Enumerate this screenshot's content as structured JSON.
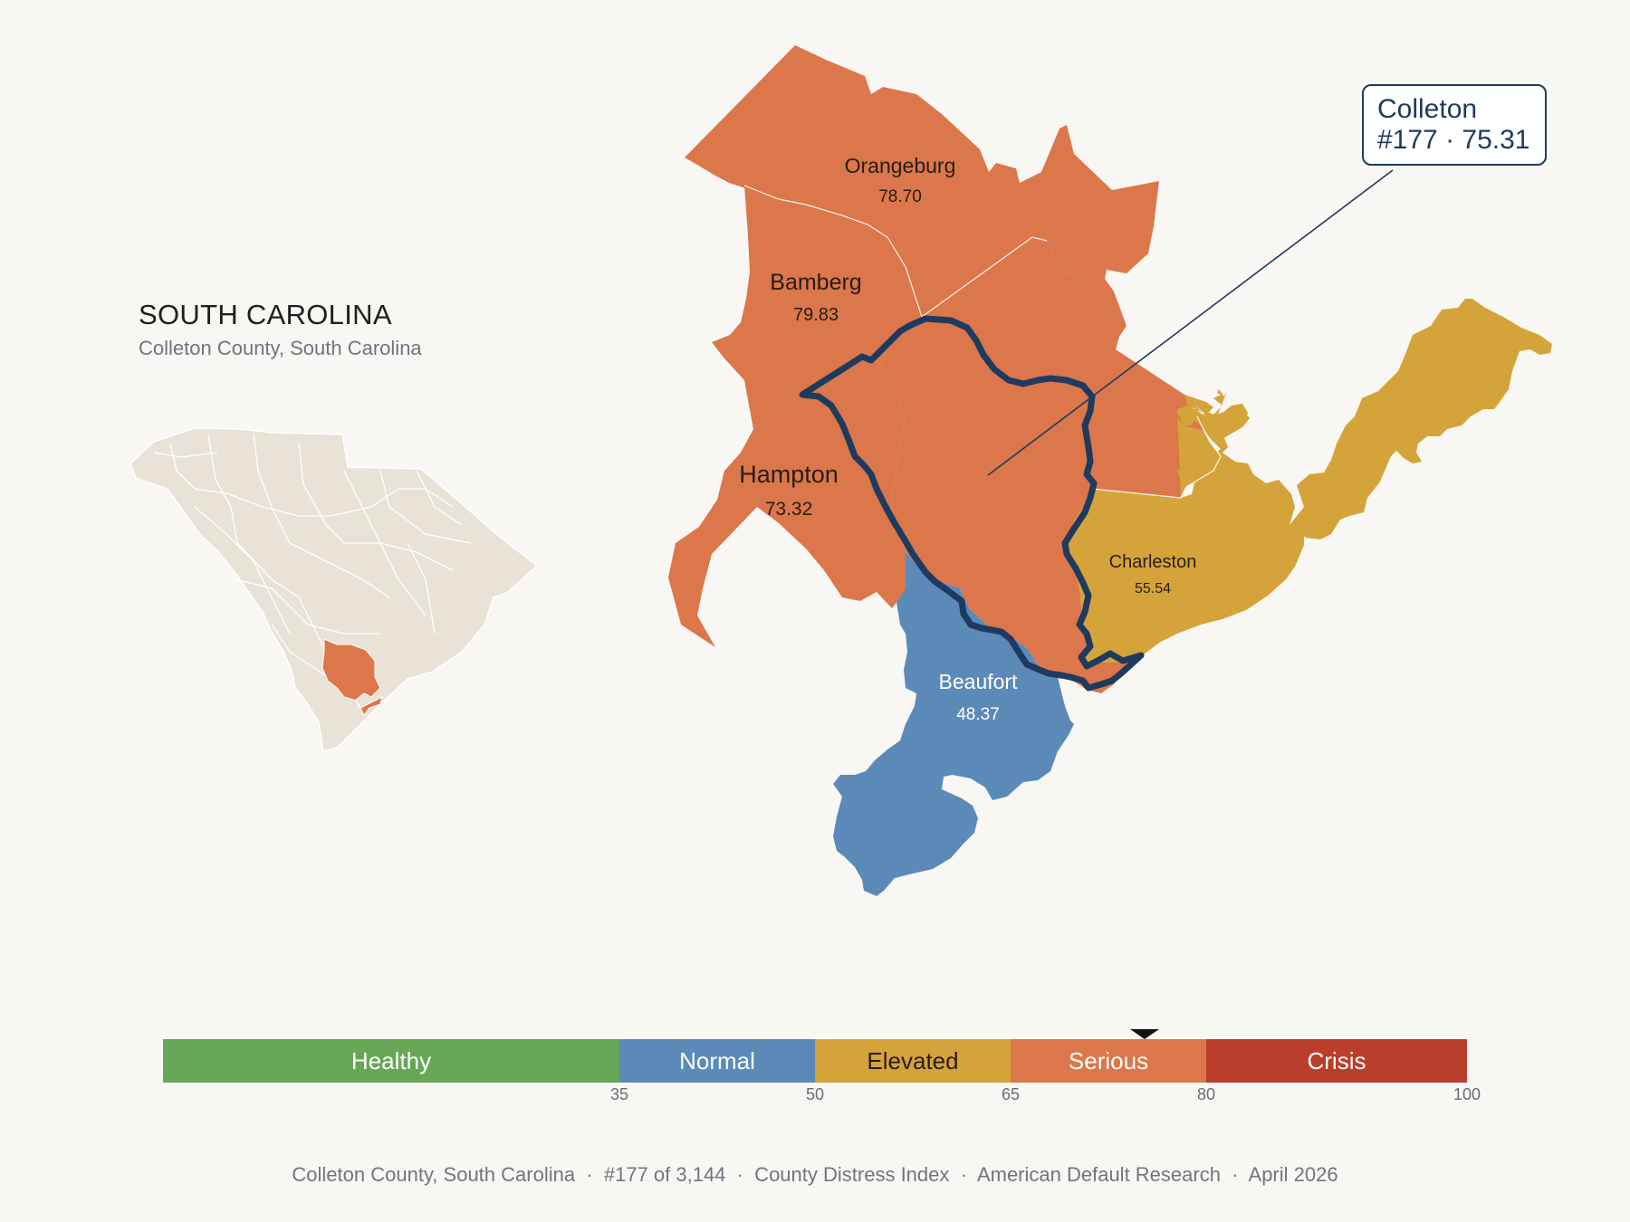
{
  "state": {
    "title": "SOUTH CAROLINA",
    "subtitle": "Colleton County, South Carolina"
  },
  "callout": {
    "name": "Colleton",
    "rank_score": "#177 · 75.31"
  },
  "counties": [
    {
      "name": "Orangeburg",
      "score": "78.70",
      "category": "Serious"
    },
    {
      "name": "Bamberg",
      "score": "79.83",
      "category": "Serious"
    },
    {
      "name": "Hampton",
      "score": "73.32",
      "category": "Serious"
    },
    {
      "name": "Charleston",
      "score": "55.54",
      "category": "Elevated"
    },
    {
      "name": "Beaufort",
      "score": "48.37",
      "category": "Normal"
    }
  ],
  "focus_county": {
    "name": "Colleton",
    "score": 75.31,
    "rank": 177
  },
  "scale": {
    "segments": [
      {
        "label": "Healthy",
        "from": 0,
        "to": 35,
        "color": "#67a657"
      },
      {
        "label": "Normal",
        "from": 35,
        "to": 50,
        "color": "#5b8ab8"
      },
      {
        "label": "Elevated",
        "from": 50,
        "to": 65,
        "color": "#d4a43a"
      },
      {
        "label": "Serious",
        "from": 65,
        "to": 80,
        "color": "#db774a"
      },
      {
        "label": "Crisis",
        "from": 80,
        "to": 100,
        "color": "#bb3d2c"
      }
    ],
    "ticks": [
      "35",
      "50",
      "65",
      "80",
      "100"
    ],
    "marker_value": 75.31
  },
  "colors": {
    "serious": "#db774a",
    "elevated": "#d4a43a",
    "normal": "#5b8ab8",
    "focus_outline": "#1e3a5f",
    "inset_land": "#e8e2d7"
  },
  "footer": "Colleton County, South Carolina  ·  #177 of 3,144  ·  County Distress Index  ·  American Default Research  ·  April 2026"
}
